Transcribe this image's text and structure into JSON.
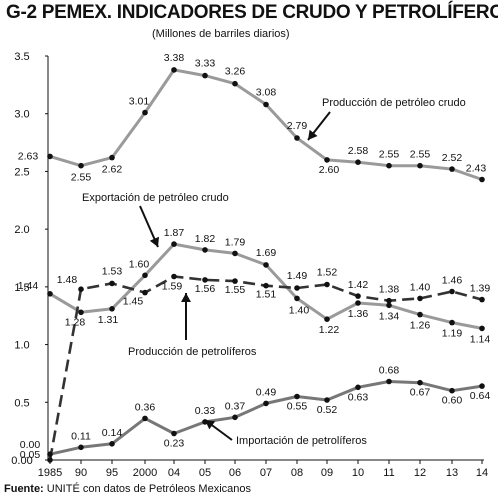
{
  "header": {
    "code": "G-2",
    "title": "PEMEX. INDICADORES DE CRUDO Y PETROLÍFEROS",
    "subtitle": "(Millones de barriles diarios)"
  },
  "footer": {
    "source_label": "Fuente:",
    "source_text": "UNITÉ con datos de Petróleos Mexicanos"
  },
  "chart_data": {
    "type": "line",
    "title": "PEMEX. INDICADORES DE CRUDO Y PETROLÍFEROS",
    "subtitle": "(Millones de barriles diarios)",
    "xlabel": "",
    "ylabel": "",
    "x": [
      "1985",
      "90",
      "95",
      "2000",
      "04",
      "05",
      "06",
      "07",
      "08",
      "09",
      "10",
      "11",
      "12",
      "13",
      "14"
    ],
    "ylim": [
      0,
      3.5
    ],
    "yticks": [
      "0.00",
      "0.5",
      "1.0",
      "1.5",
      "2.0",
      "2.5",
      "3.0",
      "3.5"
    ],
    "grid": false,
    "series": [
      {
        "name": "Producción de petróleo crudo",
        "style": "solid",
        "color": "#9a9a9a",
        "values": [
          2.63,
          2.55,
          2.62,
          3.01,
          3.38,
          3.33,
          3.26,
          3.08,
          2.79,
          2.6,
          2.58,
          2.55,
          2.55,
          2.52,
          2.43
        ],
        "labels": [
          "2.63",
          "2.55",
          "2.62",
          "3.01",
          "3.38",
          "3.33",
          "3.26",
          "3.08",
          "2.79",
          "2.60",
          "2.58",
          "2.55",
          "2.55",
          "2.52",
          "2.43"
        ]
      },
      {
        "name": "Exportación de petróleo crudo",
        "style": "solid",
        "color": "#9a9a9a",
        "values": [
          1.44,
          1.28,
          1.31,
          1.6,
          1.87,
          1.82,
          1.79,
          1.69,
          1.4,
          1.22,
          1.36,
          1.34,
          1.26,
          1.19,
          1.14
        ],
        "labels": [
          "1.44",
          "1.28",
          "1.31",
          "1.60",
          "1.87",
          "1.82",
          "1.79",
          "1.69",
          "1.40",
          "1.22",
          "1.36",
          "1.34",
          "1.26",
          "1.19",
          "1.14"
        ]
      },
      {
        "name": "Producción de petrolíferos",
        "style": "dashed",
        "color": "#333333",
        "values": [
          0.0,
          1.48,
          1.53,
          1.45,
          1.59,
          1.56,
          1.55,
          1.51,
          1.49,
          1.52,
          1.42,
          1.38,
          1.4,
          1.46,
          1.39
        ],
        "labels": [
          "0.00",
          "1.48",
          "1.53",
          "1.45",
          "1.59",
          "1.56",
          "1.55",
          "1.51",
          "1.49",
          "1.52",
          "1.42",
          "1.38",
          "1.40",
          "1.46",
          "1.39"
        ]
      },
      {
        "name": "Importación de petrolíferos",
        "style": "solid",
        "color": "#777777",
        "values": [
          0.05,
          0.11,
          0.14,
          0.36,
          0.23,
          0.33,
          0.37,
          0.49,
          0.55,
          0.52,
          0.63,
          0.68,
          0.67,
          0.6,
          0.64
        ],
        "labels": [
          "0.05",
          "0.11",
          "0.14",
          "0.36",
          "0.23",
          "0.33",
          "0.37",
          "0.49",
          "0.55",
          "0.52",
          "0.63",
          "0.68",
          "0.67",
          "0.60",
          "0.64"
        ]
      }
    ],
    "annotations": [
      {
        "series": 0,
        "text": "Producción de petróleo crudo"
      },
      {
        "series": 1,
        "text": "Exportación de petróleo crudo"
      },
      {
        "series": 2,
        "text": "Producción de petrolíferos"
      },
      {
        "series": 3,
        "text": "Importación de petrolíferos"
      }
    ]
  }
}
